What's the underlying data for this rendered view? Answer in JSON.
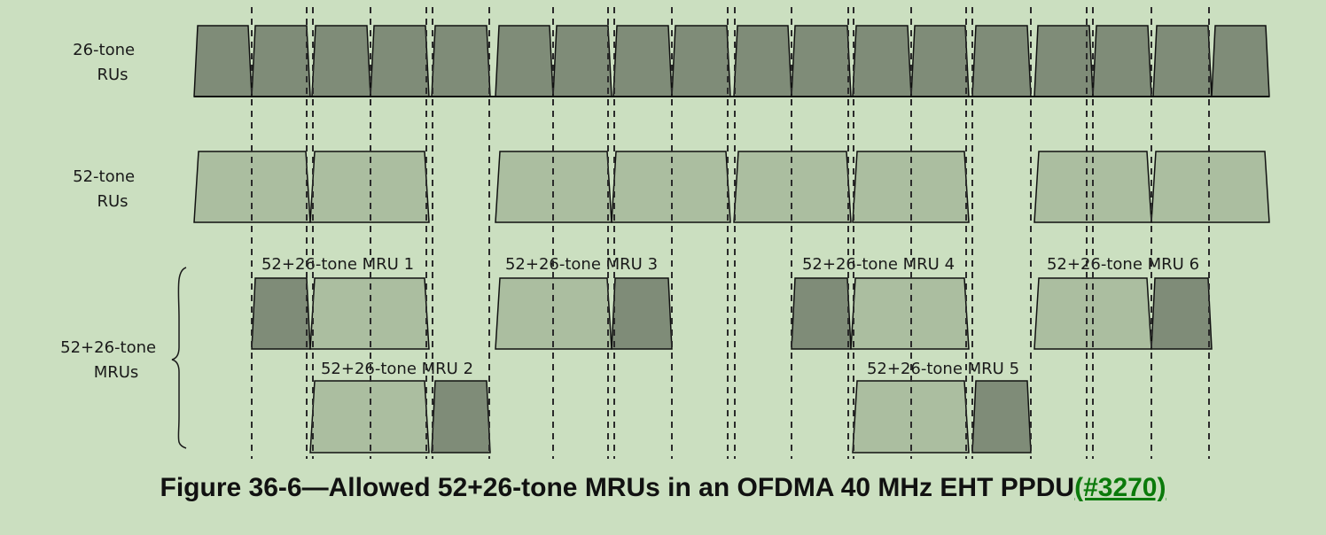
{
  "rows": {
    "ru26_label": [
      "26-tone",
      "RUs"
    ],
    "ru52_label": [
      "52-tone",
      "RUs"
    ],
    "mru_label": [
      "52+26-tone",
      "MRUs"
    ]
  },
  "mrus": [
    "52+26-tone MRU 1",
    "52+26-tone MRU 2",
    "52+26-tone MRU 3",
    "52+26-tone MRU 4",
    "52+26-tone MRU 5",
    "52+26-tone MRU 6"
  ],
  "caption": {
    "text": "Figure 36-6—Allowed 52+26-tone MRUs in an OFDMA 40 MHz EHT PPDU",
    "link": "(#3270)"
  },
  "colors": {
    "background": "#cbdfc0",
    "dark_ru": "#7f8c78",
    "light_ru": "#abbea0",
    "link": "#0b7a0b"
  }
}
